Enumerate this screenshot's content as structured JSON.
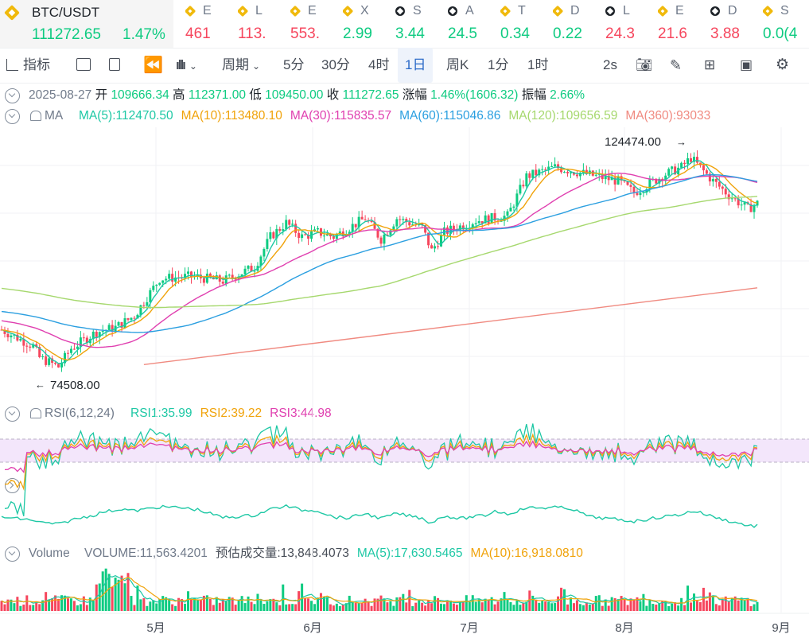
{
  "pair": {
    "symbol": "BTC/USDT",
    "price": "111272.65",
    "change": "1.47%"
  },
  "tickers": [
    {
      "letter": "E",
      "value": "461",
      "dir": "dn",
      "icon": "bnb-icon"
    },
    {
      "letter": "L",
      "value": "113.",
      "dir": "dn",
      "icon": "bnb-icon"
    },
    {
      "letter": "E",
      "value": "553.",
      "dir": "dn",
      "icon": "bnb-icon"
    },
    {
      "letter": "X",
      "value": "2.99",
      "dir": "up",
      "icon": "bnb-icon"
    },
    {
      "letter": "S",
      "value": "3.44",
      "dir": "up",
      "icon": "okx-icon"
    },
    {
      "letter": "A",
      "value": "24.5",
      "dir": "up",
      "icon": "okx-icon"
    },
    {
      "letter": "T",
      "value": "0.34",
      "dir": "up",
      "icon": "bnb-icon"
    },
    {
      "letter": "D",
      "value": "0.22",
      "dir": "up",
      "icon": "bnb-icon"
    },
    {
      "letter": "L",
      "value": "24.3",
      "dir": "dn",
      "icon": "okx-icon"
    },
    {
      "letter": "E",
      "value": "21.6",
      "dir": "dn",
      "icon": "bnb-icon"
    },
    {
      "letter": "D",
      "value": "3.88",
      "dir": "dn",
      "icon": "okx-icon"
    },
    {
      "letter": "S",
      "value": "0.0(4",
      "dir": "up",
      "icon": "bnb-icon"
    }
  ],
  "toolbar": {
    "indicators": "指标",
    "period": "周期",
    "intervals": [
      "5分",
      "30分",
      "4时",
      "1日",
      "周K",
      "1分",
      "1时"
    ],
    "active_interval": "1日",
    "refresh": "2s"
  },
  "ohlc": {
    "date": "2025-08-27",
    "open_label": "开",
    "open": "109666.34",
    "high_label": "高",
    "high": "112371.00",
    "low_label": "低",
    "low": "109450.00",
    "close_label": "收",
    "close": "111272.65",
    "chg_label": "涨幅",
    "chg": "1.46%(1606.32)",
    "amp_label": "振幅",
    "amp": "2.66%"
  },
  "ma": {
    "label": "MA",
    "items": [
      {
        "text": "MA(5):112470.50",
        "color": "#1ec8a5"
      },
      {
        "text": "MA(10):113480.10",
        "color": "#f0a30b"
      },
      {
        "text": "MA(30):115835.57",
        "color": "#e040b0"
      },
      {
        "text": "MA(60):115046.86",
        "color": "#2b9fe0"
      },
      {
        "text": "MA(120):109656.59",
        "color": "#a6d86e"
      },
      {
        "text": "MA(360):93033",
        "color": "#f08a80"
      }
    ],
    "high_marker": "124474.00",
    "low_marker": "74508.00"
  },
  "rsi": {
    "label": "RSI(6,12,24)",
    "items": [
      {
        "text": "RSI1:35.99",
        "color": "#1ec8a5"
      },
      {
        "text": "RSI2:39.22",
        "color": "#f0a30b"
      },
      {
        "text": "RSI3:44.98",
        "color": "#e040b0"
      }
    ]
  },
  "volume": {
    "label": "Volume",
    "items": [
      {
        "text": "VOLUME:11,563.4201",
        "color": "#707a8a"
      },
      {
        "text": "预估成交量:13,848.4073",
        "color": "#474d57"
      },
      {
        "text": "MA(5):17,630.5465",
        "color": "#1ec8a5"
      },
      {
        "text": "MA(10):16,918.0810",
        "color": "#f0a30b"
      }
    ]
  },
  "x_axis": [
    "5月",
    "6月",
    "7月",
    "8月",
    "9月"
  ],
  "colors": {
    "up": "#0ecb81",
    "down": "#f6465d",
    "accent": "#2a6ac8"
  },
  "chart_data": {
    "type": "candlestick",
    "series": [
      {
        "name": "MA(5)",
        "last": 112470.5
      },
      {
        "name": "MA(10)",
        "last": 113480.1
      },
      {
        "name": "MA(30)",
        "last": 115835.57
      },
      {
        "name": "MA(60)",
        "last": 115046.86
      },
      {
        "name": "MA(120)",
        "last": 109656.59
      },
      {
        "name": "MA(360)",
        "last": 93033
      }
    ],
    "period_high": 124474.0,
    "period_low": 74508.0,
    "last_close": 111272.65
  }
}
